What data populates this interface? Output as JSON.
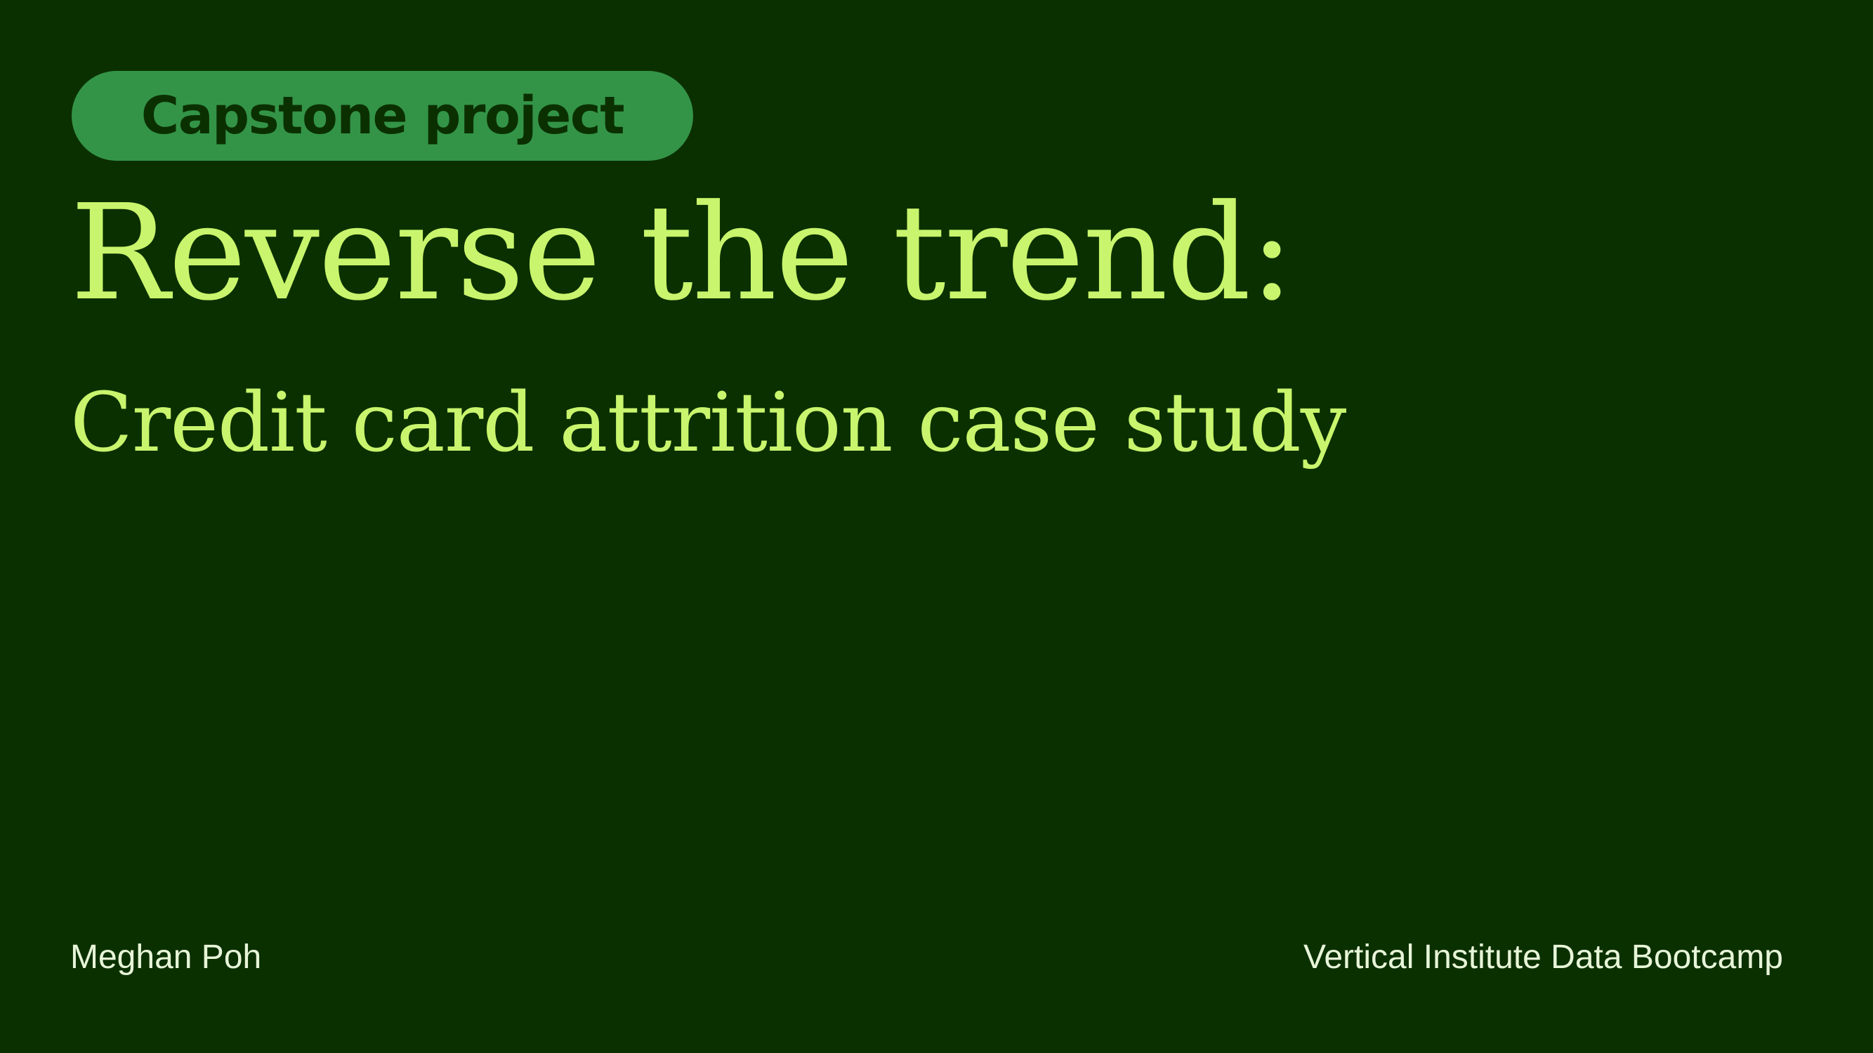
{
  "slide": {
    "tag_label": "Capstone project",
    "title": "Reverse the trend:",
    "subtitle": "Credit card attrition case study",
    "author": "Meghan Poh",
    "organization": "Vertical Institute Data Bootcamp"
  },
  "colors": {
    "background": "#0b3000",
    "tag_background": "#339447",
    "tag_text": "#0b3000",
    "heading_text": "#c8f56d",
    "footer_text": "#e7f5d8"
  }
}
